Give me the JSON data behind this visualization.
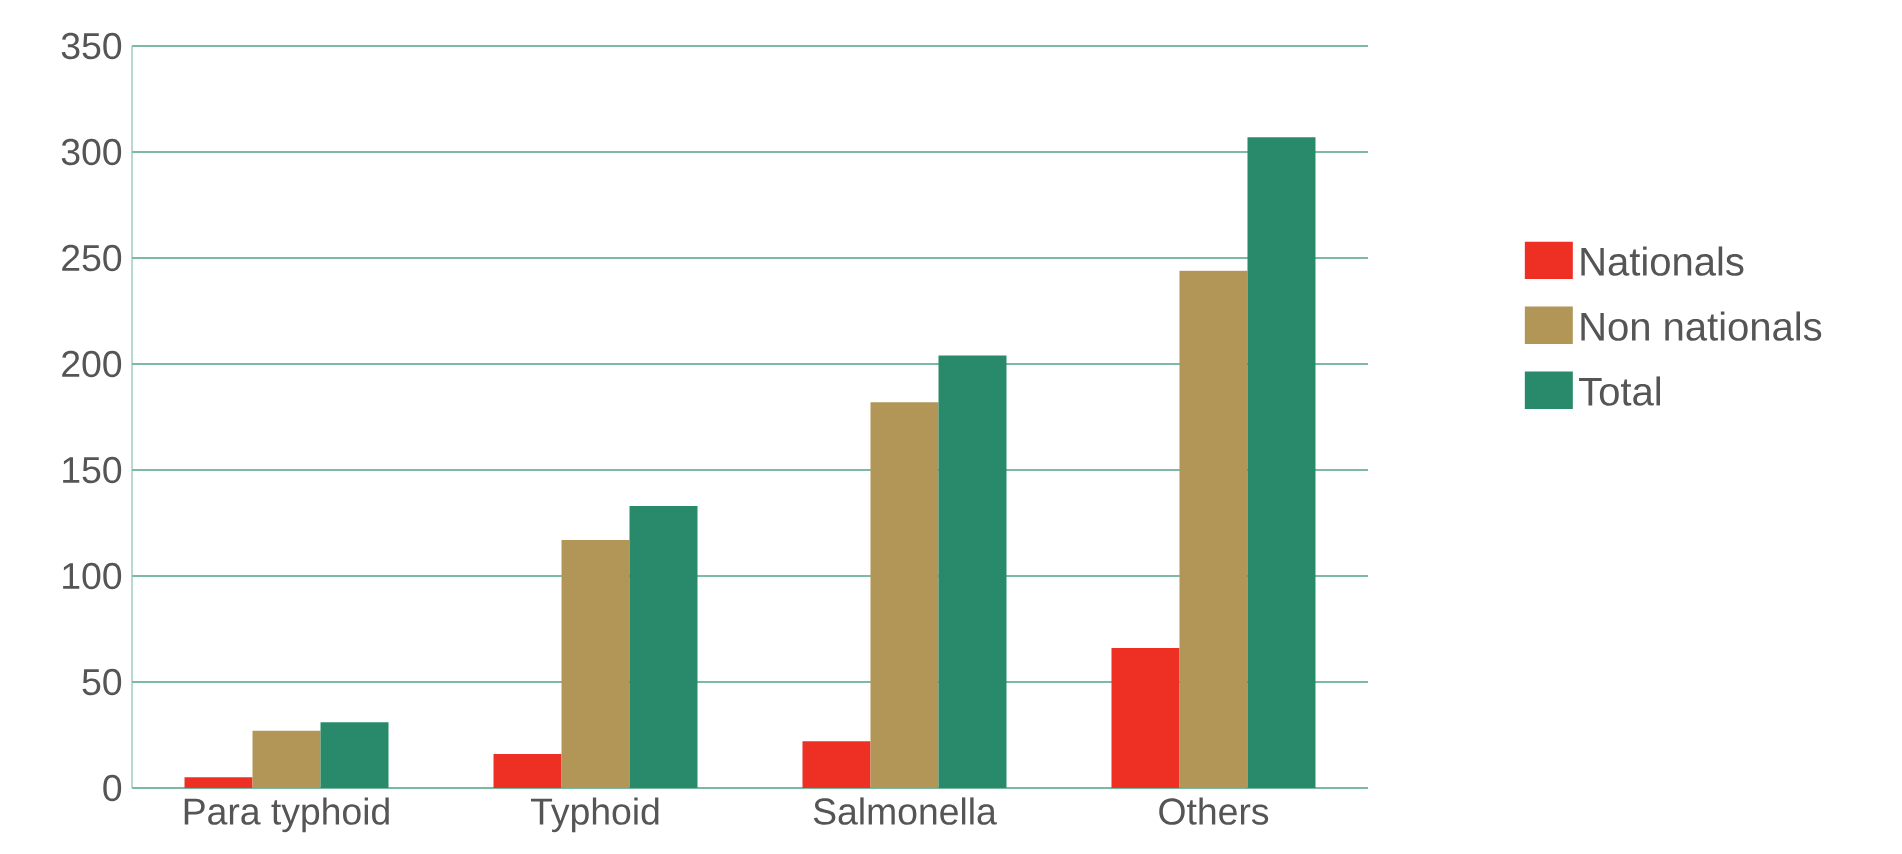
{
  "chart_data": {
    "type": "bar",
    "categories": [
      "Para typhoid",
      "Typhoid",
      "Salmonella",
      "Others"
    ],
    "series": [
      {
        "name": "Nationals",
        "color": "#ee2f24",
        "values": [
          5,
          16,
          22,
          66
        ]
      },
      {
        "name": "Non nationals",
        "color": "#b29657",
        "values": [
          27,
          117,
          182,
          244
        ]
      },
      {
        "name": "Total",
        "color": "#288a6b",
        "values": [
          31,
          133,
          204,
          307
        ]
      }
    ],
    "ylim": [
      0,
      350
    ],
    "yticks": [
      0,
      50,
      100,
      150,
      200,
      250,
      300,
      350
    ],
    "grid": "y",
    "legend": "right"
  }
}
